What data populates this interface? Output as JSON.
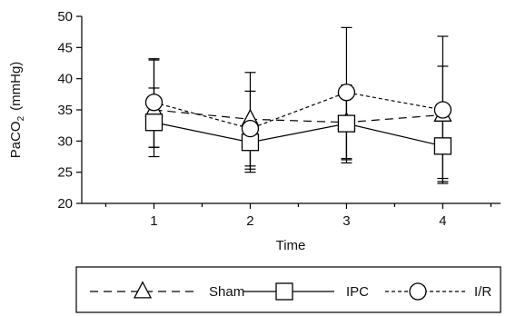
{
  "chart_data": {
    "type": "line",
    "xlabel": "Time",
    "ylabel": "PaCO",
    "ylabel_sub": "2",
    "ylabel_unit": "(mmHg)",
    "x": [
      1,
      2,
      3,
      4
    ],
    "x_tick_labels": [
      "1",
      "2",
      "3",
      "4"
    ],
    "xlim": [
      0.25,
      4.6
    ],
    "ylim": [
      20,
      50
    ],
    "y_ticks": [
      20,
      25,
      30,
      35,
      40,
      45,
      50
    ],
    "y_tick_labels": [
      "20",
      "25",
      "30",
      "35",
      "40",
      "45",
      "50"
    ],
    "grid": false,
    "legend_position": "bottom",
    "series": [
      {
        "name": "Sham",
        "marker": "triangle",
        "line_style": "long-dash",
        "values": [
          35.0,
          33.5,
          33.0,
          34.2
        ],
        "error_upper": [
          43.0,
          38.0,
          39.0,
          42.0
        ],
        "error_lower": [
          29.0,
          26.0,
          27.0,
          24.0
        ]
      },
      {
        "name": "IPC",
        "marker": "square",
        "line_style": "solid",
        "values": [
          33.0,
          29.8,
          32.8,
          29.2
        ],
        "error_upper": [
          38.5,
          33.5,
          38.8,
          35.0
        ],
        "error_lower": [
          27.5,
          25.0,
          26.5,
          23.5
        ]
      },
      {
        "name": "I/R",
        "marker": "circle",
        "line_style": "short-dash",
        "values": [
          36.2,
          32.0,
          37.8,
          35.0
        ],
        "error_upper": [
          43.2,
          41.0,
          48.2,
          46.8
        ],
        "error_lower": [
          29.0,
          25.5,
          27.2,
          23.2
        ]
      }
    ]
  }
}
